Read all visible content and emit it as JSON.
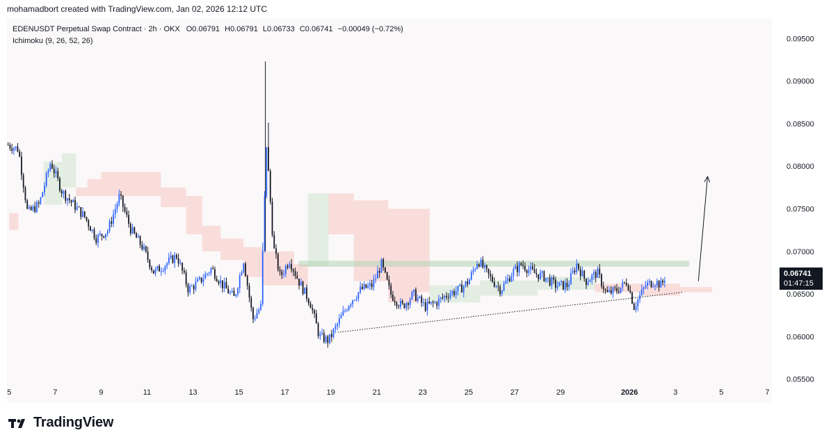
{
  "header": {
    "attribution": "mohamadbort created with TradingView.com, Jan 02, 2026 12:12 UTC"
  },
  "legend": {
    "symbol_line": "EDENUSDT Perpetual Swap Contract · 2h · OKX",
    "open": "O0.06791",
    "high": "H0.06791",
    "low": "L0.06733",
    "close": "C0.06741",
    "change": "−0.00049 (−0.72%)",
    "indicator": "Ichimoku (9, 26, 52, 26)"
  },
  "price_badge": {
    "price": "0.06741",
    "countdown": "01:47:15"
  },
  "brand": {
    "name": "TradingView"
  },
  "colors": {
    "background": "#fbf8f9",
    "up_candle": "#2962ff",
    "down_candle": "#131722",
    "cloud_bear": "#f7c7c3",
    "cloud_bull": "#cfe3cf",
    "resistance_zone": "#b5d3b5",
    "badge_bg": "#131722"
  },
  "chart_data": {
    "type": "candlestick",
    "title": "EDENUSDT Perpetual Swap Contract · 2h · OKX",
    "y_ticks": [
      "0.09500",
      "0.09000",
      "0.08500",
      "0.08000",
      "0.07500",
      "0.07000",
      "0.06500",
      "0.06000",
      "0.05500"
    ],
    "y_tick_values": [
      0.095,
      0.09,
      0.085,
      0.08,
      0.075,
      0.07,
      0.065,
      0.06,
      0.055
    ],
    "ylim": [
      0.0535,
      0.0965
    ],
    "x_ticks": [
      "5",
      "7",
      "9",
      "11",
      "13",
      "15",
      "17",
      "19",
      "21",
      "23",
      "25",
      "27",
      "29",
      "2026",
      "3",
      "5",
      "7"
    ],
    "x_tick_days": [
      5,
      7,
      9,
      11,
      13,
      15,
      17,
      19,
      21,
      23,
      25,
      27,
      29,
      32,
      34,
      36,
      38
    ],
    "xlim_days": [
      4.9,
      38.2
    ],
    "last_price": 0.06741,
    "close_path": [
      {
        "day": 4.95,
        "price": 0.0825
      },
      {
        "day": 5.4,
        "price": 0.082
      },
      {
        "day": 5.8,
        "price": 0.0745
      },
      {
        "day": 6.3,
        "price": 0.0755
      },
      {
        "day": 6.8,
        "price": 0.0805
      },
      {
        "day": 7.3,
        "price": 0.077
      },
      {
        "day": 7.8,
        "price": 0.0755
      },
      {
        "day": 8.3,
        "price": 0.074
      },
      {
        "day": 8.8,
        "price": 0.0715
      },
      {
        "day": 9.3,
        "price": 0.0725
      },
      {
        "day": 9.8,
        "price": 0.0765
      },
      {
        "day": 10.3,
        "price": 0.0725
      },
      {
        "day": 10.8,
        "price": 0.0705
      },
      {
        "day": 11.3,
        "price": 0.0675
      },
      {
        "day": 11.8,
        "price": 0.0685
      },
      {
        "day": 12.3,
        "price": 0.0695
      },
      {
        "day": 12.8,
        "price": 0.0655
      },
      {
        "day": 13.3,
        "price": 0.0665
      },
      {
        "day": 13.8,
        "price": 0.068
      },
      {
        "day": 14.3,
        "price": 0.066
      },
      {
        "day": 14.8,
        "price": 0.0645
      },
      {
        "day": 15.2,
        "price": 0.069
      },
      {
        "day": 15.6,
        "price": 0.062
      },
      {
        "day": 15.95,
        "price": 0.0635
      },
      {
        "day": 16.2,
        "price": 0.0825
      },
      {
        "day": 16.5,
        "price": 0.0705
      },
      {
        "day": 16.8,
        "price": 0.067
      },
      {
        "day": 17.2,
        "price": 0.069
      },
      {
        "day": 17.6,
        "price": 0.0665
      },
      {
        "day": 18.1,
        "price": 0.064
      },
      {
        "day": 18.5,
        "price": 0.06
      },
      {
        "day": 18.9,
        "price": 0.0595
      },
      {
        "day": 19.3,
        "price": 0.0615
      },
      {
        "day": 19.8,
        "price": 0.064
      },
      {
        "day": 20.3,
        "price": 0.0655
      },
      {
        "day": 20.8,
        "price": 0.066
      },
      {
        "day": 21.2,
        "price": 0.0685
      },
      {
        "day": 21.6,
        "price": 0.065
      },
      {
        "day": 22.1,
        "price": 0.0635
      },
      {
        "day": 22.6,
        "price": 0.065
      },
      {
        "day": 23.1,
        "price": 0.0635
      },
      {
        "day": 23.6,
        "price": 0.064
      },
      {
        "day": 24.1,
        "price": 0.065
      },
      {
        "day": 24.6,
        "price": 0.0655
      },
      {
        "day": 25.0,
        "price": 0.0665
      },
      {
        "day": 25.4,
        "price": 0.069
      },
      {
        "day": 25.9,
        "price": 0.067
      },
      {
        "day": 26.4,
        "price": 0.0655
      },
      {
        "day": 26.9,
        "price": 0.0675
      },
      {
        "day": 27.3,
        "price": 0.0685
      },
      {
        "day": 27.8,
        "price": 0.0675
      },
      {
        "day": 28.3,
        "price": 0.067
      },
      {
        "day": 28.8,
        "price": 0.066
      },
      {
        "day": 29.3,
        "price": 0.066
      },
      {
        "day": 29.7,
        "price": 0.0685
      },
      {
        "day": 30.1,
        "price": 0.0665
      },
      {
        "day": 30.6,
        "price": 0.0675
      },
      {
        "day": 31.0,
        "price": 0.065
      },
      {
        "day": 31.5,
        "price": 0.0655
      },
      {
        "day": 31.9,
        "price": 0.0665
      },
      {
        "day": 32.2,
        "price": 0.0635
      },
      {
        "day": 32.7,
        "price": 0.066
      },
      {
        "day": 33.1,
        "price": 0.0665
      },
      {
        "day": 33.4,
        "price": 0.066
      },
      {
        "day": 33.6,
        "price": 0.06741
      }
    ],
    "annotations": {
      "resistance_zone": {
        "from_day": 17.6,
        "to_day": 34.6,
        "price_low": 0.0682,
        "price_high": 0.0689
      },
      "rising_support_line": {
        "from_day": 19.3,
        "from_price": 0.0605,
        "to_day": 34.3,
        "to_price": 0.0652
      },
      "projection_arrow": {
        "from_day": 35.0,
        "from_price": 0.0665,
        "to_day": 35.4,
        "to_price": 0.0788
      }
    },
    "ichimoku_cloud_segments": [
      {
        "from_day": 5.0,
        "to_day": 5.4,
        "top": 0.0745,
        "bottom": 0.0725,
        "bias": "bear"
      },
      {
        "from_day": 6.5,
        "to_day": 7.3,
        "top": 0.0805,
        "bottom": 0.0755,
        "bias": "bull"
      },
      {
        "from_day": 7.3,
        "to_day": 7.9,
        "top": 0.0815,
        "bottom": 0.0775,
        "bias": "bull"
      },
      {
        "from_day": 7.9,
        "to_day": 8.4,
        "top": 0.0775,
        "bottom": 0.0765,
        "bias": "bear"
      },
      {
        "from_day": 8.4,
        "to_day": 9.0,
        "top": 0.0785,
        "bottom": 0.0765,
        "bias": "bear"
      },
      {
        "from_day": 9.0,
        "to_day": 10.5,
        "top": 0.0793,
        "bottom": 0.0765,
        "bias": "bear"
      },
      {
        "from_day": 10.5,
        "to_day": 11.6,
        "top": 0.0793,
        "bottom": 0.0765,
        "bias": "bear"
      },
      {
        "from_day": 11.6,
        "to_day": 12.7,
        "top": 0.0775,
        "bottom": 0.0752,
        "bias": "bear"
      },
      {
        "from_day": 12.7,
        "to_day": 13.4,
        "top": 0.0765,
        "bottom": 0.072,
        "bias": "bear"
      },
      {
        "from_day": 13.4,
        "to_day": 14.2,
        "top": 0.073,
        "bottom": 0.07,
        "bias": "bear"
      },
      {
        "from_day": 14.2,
        "to_day": 15.2,
        "top": 0.0715,
        "bottom": 0.069,
        "bias": "bear"
      },
      {
        "from_day": 15.2,
        "to_day": 16.0,
        "top": 0.0705,
        "bottom": 0.067,
        "bias": "bear"
      },
      {
        "from_day": 16.0,
        "to_day": 17.4,
        "top": 0.07,
        "bottom": 0.066,
        "bias": "bear"
      },
      {
        "from_day": 17.4,
        "to_day": 18.0,
        "top": 0.0685,
        "bottom": 0.066,
        "bias": "bear"
      },
      {
        "from_day": 18.0,
        "to_day": 18.9,
        "top": 0.0768,
        "bottom": 0.0682,
        "bias": "bull"
      },
      {
        "from_day": 18.9,
        "to_day": 20.0,
        "top": 0.0768,
        "bottom": 0.072,
        "bias": "bear"
      },
      {
        "from_day": 20.0,
        "to_day": 21.5,
        "top": 0.076,
        "bottom": 0.0665,
        "bias": "bear"
      },
      {
        "from_day": 21.5,
        "to_day": 22.8,
        "top": 0.075,
        "bottom": 0.064,
        "bias": "bear"
      },
      {
        "from_day": 22.8,
        "to_day": 23.3,
        "top": 0.075,
        "bottom": 0.0652,
        "bias": "bear"
      },
      {
        "from_day": 23.3,
        "to_day": 25.5,
        "top": 0.066,
        "bottom": 0.064,
        "bias": "bull"
      },
      {
        "from_day": 25.5,
        "to_day": 28.0,
        "top": 0.0666,
        "bottom": 0.0648,
        "bias": "bull"
      },
      {
        "from_day": 28.0,
        "to_day": 30.5,
        "top": 0.067,
        "bottom": 0.0655,
        "bias": "bull"
      },
      {
        "from_day": 30.5,
        "to_day": 32.5,
        "top": 0.0662,
        "bottom": 0.0652,
        "bias": "bear"
      },
      {
        "from_day": 32.5,
        "to_day": 34.2,
        "top": 0.0662,
        "bottom": 0.0648,
        "bias": "bear"
      },
      {
        "from_day": 34.2,
        "to_day": 35.6,
        "top": 0.0658,
        "bottom": 0.0652,
        "bias": "bear"
      }
    ],
    "grid": false
  }
}
